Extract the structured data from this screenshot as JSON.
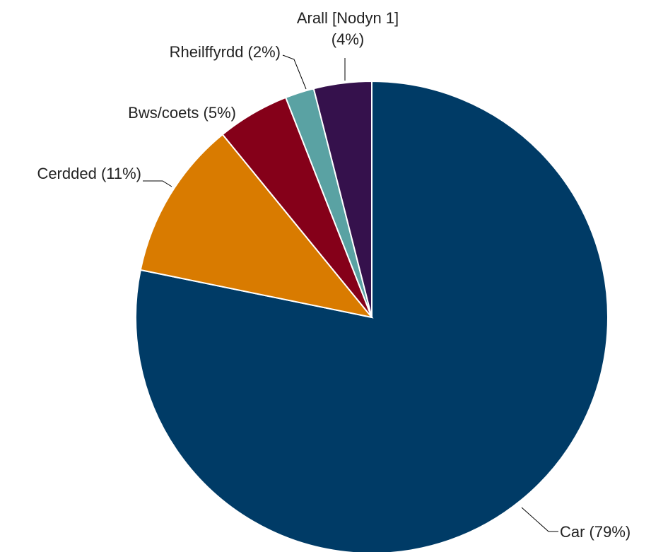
{
  "chart_data": {
    "type": "pie",
    "title": "",
    "start": "12 o'clock",
    "direction": "clockwise",
    "slices": [
      {
        "label": "Car (79%)",
        "value": 79,
        "color": "#003b66"
      },
      {
        "label": "Cerdded (11%)",
        "value": 11,
        "color": "#d97b00"
      },
      {
        "label": "Bws/coets (5%)",
        "value": 5,
        "color": "#850019"
      },
      {
        "label": "Rheilffyrdd (2%)",
        "value": 2,
        "color": "#5aa2a3"
      },
      {
        "label": "Arall [Nodyn 1]",
        "label_line2": "(4%)",
        "value": 4,
        "color": "#35114c"
      }
    ]
  }
}
